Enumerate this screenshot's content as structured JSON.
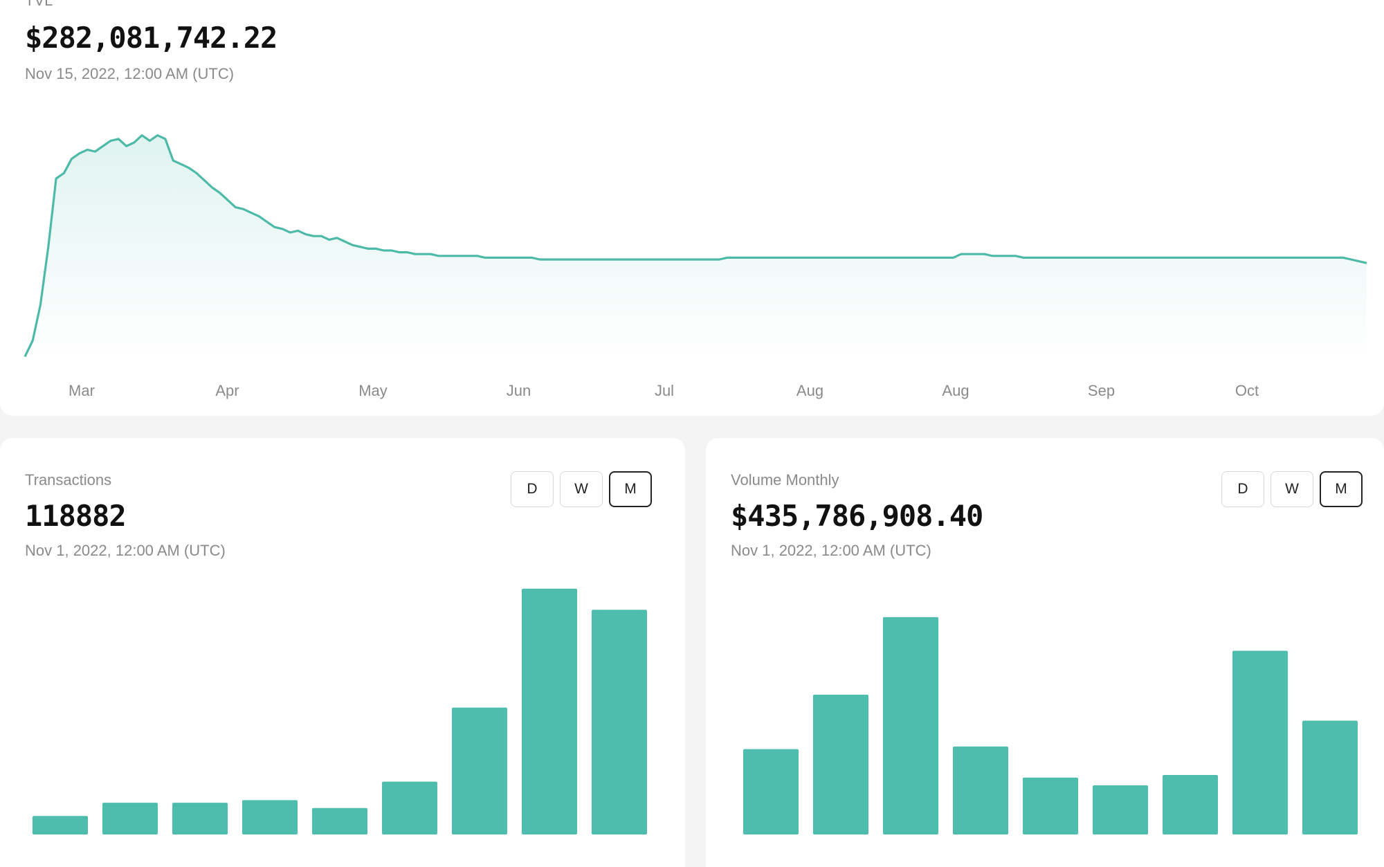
{
  "tvl": {
    "label": "TVL",
    "value": "$282,081,742.22",
    "date": "Nov 15, 2022, 12:00 AM (UTC)"
  },
  "transactions": {
    "label": "Transactions",
    "value": "118882",
    "date": "Nov 1, 2022, 12:00 AM (UTC)",
    "toggle": [
      "D",
      "W",
      "M"
    ],
    "active": "M"
  },
  "volume": {
    "label": "Volume Monthly",
    "value": "$435,786,908.40",
    "date": "Nov 1, 2022, 12:00 AM (UTC)",
    "toggle": [
      "D",
      "W",
      "M"
    ],
    "active": "M"
  },
  "colors": {
    "accent": "#4fbdad",
    "line": "#4dbaa8"
  },
  "chart_data": [
    {
      "type": "area",
      "title": "TVL",
      "x_tick_labels": [
        "Mar",
        "Apr",
        "May",
        "Jun",
        "Jul",
        "Aug",
        "Aug",
        "Sep",
        "Oct"
      ],
      "values": [
        1,
        10,
        30,
        62,
        100,
        103,
        111,
        114,
        116,
        115,
        118,
        121,
        122,
        118,
        120,
        124,
        121,
        124,
        122,
        110,
        108,
        106,
        103,
        99,
        95,
        92,
        88,
        84,
        83,
        81,
        79,
        76,
        73,
        72,
        70,
        71,
        69,
        68,
        68,
        66,
        67,
        65,
        63,
        62,
        61,
        61,
        60,
        60,
        59,
        59,
        58,
        58,
        58,
        57,
        57,
        57,
        57,
        57,
        57,
        56,
        56,
        56,
        56,
        56,
        56,
        56,
        55,
        55,
        55,
        55,
        55,
        55,
        55,
        55,
        55,
        55,
        55,
        55,
        55,
        55,
        55,
        55,
        55,
        55,
        55,
        55,
        55,
        55,
        55,
        55,
        56,
        56,
        56,
        56,
        56,
        56,
        56,
        56,
        56,
        56,
        56,
        56,
        56,
        56,
        56,
        56,
        56,
        56,
        56,
        56,
        56,
        56,
        56,
        56,
        56,
        56,
        56,
        56,
        56,
        56,
        58,
        58,
        58,
        58,
        57,
        57,
        57,
        57,
        56,
        56,
        56,
        56,
        56,
        56,
        56,
        56,
        56,
        56,
        56,
        56,
        56,
        56,
        56,
        56,
        56,
        56,
        56,
        56,
        56,
        56,
        56,
        56,
        56,
        56,
        56,
        56,
        56,
        56,
        56,
        56,
        56,
        56,
        56,
        56,
        56,
        56,
        56,
        56,
        56,
        56,
        55,
        54,
        53
      ],
      "grid": false
    },
    {
      "type": "bar",
      "title": "Transactions",
      "values": [
        7,
        12,
        12,
        13,
        10,
        20,
        48,
        93,
        85
      ],
      "ylim": [
        0,
        100
      ]
    },
    {
      "type": "bar",
      "title": "Volume Monthly",
      "values": [
        33,
        54,
        84,
        34,
        22,
        19,
        23,
        71,
        44
      ],
      "ylim": [
        0,
        100
      ]
    }
  ]
}
